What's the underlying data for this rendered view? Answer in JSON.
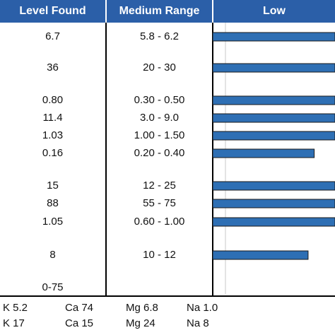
{
  "header": {
    "level_found": "Level Found",
    "medium_range": "Medium Range",
    "low": "Low"
  },
  "rows": [
    {
      "level": "6.7",
      "range": "5.8 - 6.2"
    },
    {
      "level": "36",
      "range": "20 - 30"
    },
    {
      "level": "0.80",
      "range": "0.30 - 0.50"
    },
    {
      "level": "11.4",
      "range": "3.0 - 9.0"
    },
    {
      "level": "1.03",
      "range": "1.00 - 1.50"
    },
    {
      "level": "0.16",
      "range": "0.20 - 0.40"
    },
    {
      "level": "15",
      "range": "12 - 25"
    },
    {
      "level": "88",
      "range": "55 - 75"
    },
    {
      "level": "1.05",
      "range": "0.60 - 1.00"
    },
    {
      "level": "8",
      "range": "10 - 12"
    },
    {
      "level": "0-75",
      "range": ""
    }
  ],
  "footer": [
    [
      "K 5.2",
      "Ca 74",
      "Mg 6.8",
      "Na 1.0"
    ],
    [
      "K 17",
      "Ca 15",
      "Mg 24",
      "Na 8"
    ]
  ],
  "chart_data": {
    "type": "bar",
    "orientation": "horizontal",
    "categories": [
      "6.7",
      "36",
      "0.80",
      "11.4",
      "1.03",
      "0.16",
      "15",
      "88",
      "1.05",
      "8",
      "0-75"
    ],
    "values": [
      1.0,
      1.0,
      1.0,
      1.0,
      1.0,
      0.83,
      1.0,
      1.0,
      1.0,
      0.78,
      0
    ],
    "xlim": [
      0,
      1
    ],
    "grid": true,
    "bar_color": "#2e6fb4",
    "bar_border_color": "#1a1a1a"
  }
}
